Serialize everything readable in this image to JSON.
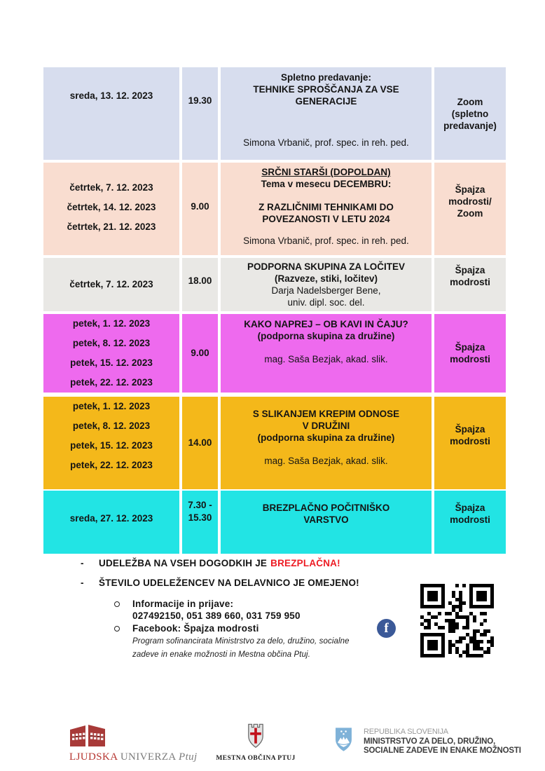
{
  "table": {
    "rows": [
      {
        "bg": "#d7ddee",
        "dates": [
          "sreda, 13. 12. 2023"
        ],
        "time_lines": [
          "19.30"
        ],
        "desc": [
          {
            "t": "Spletno predavanje:",
            "s": "b"
          },
          {
            "t": "TEHNIKE SPROŠČANJA ZA VSE",
            "s": "b"
          },
          {
            "t": "GENERACIJE",
            "s": "b"
          },
          {
            "s": "grow"
          },
          {
            "t": "Simona Vrbanič, prof. spec. in reh. ped.",
            "s": "r"
          }
        ],
        "location_lines": [
          "Zoom",
          "(spletno",
          "predavanje)"
        ]
      },
      {
        "bg": "#f9ddd0",
        "dates": [
          "četrtek, 7. 12. 2023",
          "četrtek, 14. 12. 2023",
          "četrtek, 21. 12. 2023"
        ],
        "time_lines": [
          "9.00"
        ],
        "desc": [
          {
            "t": "SRČNI STARŠI (DOPOLDAN)",
            "s": "bu"
          },
          {
            "t": "Tema v mesecu DECEMBRU:",
            "s": "b"
          },
          {
            "s": "gap"
          },
          {
            "t": "Z RAZLIČNIMI TEHNIKAMI DO",
            "s": "b"
          },
          {
            "t": "POVEZANOSTI V LETU 2024",
            "s": "b"
          },
          {
            "s": "grow"
          },
          {
            "t": "Simona Vrbanič, prof. spec. in reh. ped.",
            "s": "r"
          }
        ],
        "location_lines": [
          "Špajza",
          "modrosti/",
          "Zoom"
        ]
      },
      {
        "bg": "#e9e8e5",
        "dates": [
          "četrtek, 7. 12. 2023"
        ],
        "time_lines": [
          "18.00"
        ],
        "desc": [
          {
            "t": "PODPORNA SKUPINA ZA LOČITEV",
            "s": "b"
          },
          {
            "t": "(Razveze, stiki, ločitev)",
            "s": "b"
          },
          {
            "t": "Darja Nadelsberger Bene,",
            "s": "r"
          },
          {
            "t": "univ. dipl. soc. del.",
            "s": "r"
          }
        ],
        "location_lines": [
          "Špajza",
          "modrosti"
        ]
      },
      {
        "bg": "#ee6aee",
        "dates": [
          "petek, 1. 12. 2023",
          "petek, 8. 12. 2023",
          "petek, 15. 12. 2023",
          "petek, 22. 12. 2023"
        ],
        "time_lines": [
          "9.00"
        ],
        "desc": [
          {
            "t": "KAKO NAPREJ – OB KAVI IN ČAJU?",
            "s": "b"
          },
          {
            "t": "(podporna skupina za družine)",
            "s": "b"
          },
          {
            "s": "gap"
          },
          {
            "t": "mag. Saša Bezjak, akad. slik.",
            "s": "r"
          }
        ],
        "location_lines": [
          "Špajza",
          "modrosti"
        ]
      },
      {
        "bg": "#f4b81a",
        "dates": [
          "petek, 1. 12. 2023",
          "petek, 8. 12. 2023",
          "petek, 15. 12. 2023",
          "petek, 22. 12. 2023"
        ],
        "time_lines": [
          "14.00"
        ],
        "desc": [
          {
            "t": "S SLIKANJEM KREPIM ODNOSE",
            "s": "b"
          },
          {
            "t": "V DRUŽINI",
            "s": "b"
          },
          {
            "t": "(podporna skupina za družine)",
            "s": "b"
          },
          {
            "s": "gap"
          },
          {
            "t": "mag. Saša Bezjak, akad. slik.",
            "s": "r"
          }
        ],
        "location_lines": [
          "Špajza",
          "modrosti"
        ]
      },
      {
        "bg": "#22e4e4",
        "dates": [
          "sreda, 27. 12. 2023"
        ],
        "time_lines": [
          "7.30 -",
          "15.30"
        ],
        "desc": [
          {
            "t": "BREZPLAČNO POČITNIŠKO",
            "s": "b"
          },
          {
            "t": "VARSTVO",
            "s": "b"
          }
        ],
        "location_lines": [
          "Špajza",
          "modrosti"
        ]
      }
    ]
  },
  "notes": {
    "dash_marker": "-",
    "bullet1_text": "UDELEŽBA NA VSEH DOGODKIH JE",
    "bullet1_highlight": "BREZPLAČNA!",
    "bullet2_text": "ŠTEVILO UDELEŽENCEV NA DELAVNICO JE OMEJENO!",
    "info_label": "Informacije in prijave:",
    "info_numbers": "027492150, 051 389 660, 031 759 950",
    "facebook_label": "Facebook: Špajza modrosti",
    "fine_print_line1": "Program sofinancirata Ministrstvo za delo, družino, socialne",
    "fine_print_line2": "zadeve in enake možnosti in Mestna občina Ptuj.",
    "highlight_color": "#ed1c24"
  },
  "icons": {
    "facebook_glyph": "f",
    "facebook_blue": "#3b5998",
    "qr_name": "qr-code",
    "ministry_shield_blue": "#7fb2d8",
    "lu_building_red": "#a83a38",
    "ptuj_cross_red": "#c1121c"
  },
  "footer": {
    "lu": {
      "word1": "LJUDSKA",
      "word2": "UNIVERZA",
      "word3": "Ptuj"
    },
    "ptuj": {
      "label": "MESTNA OBČINA PTUJ"
    },
    "ministry": {
      "line1": "REPUBLIKA SLOVENIJA",
      "line2": "MINISTRSTVO ZA DELO, DRUŽINO,",
      "line3": "SOCIALNE ZADEVE IN ENAKE MOŽNOSTI"
    }
  }
}
